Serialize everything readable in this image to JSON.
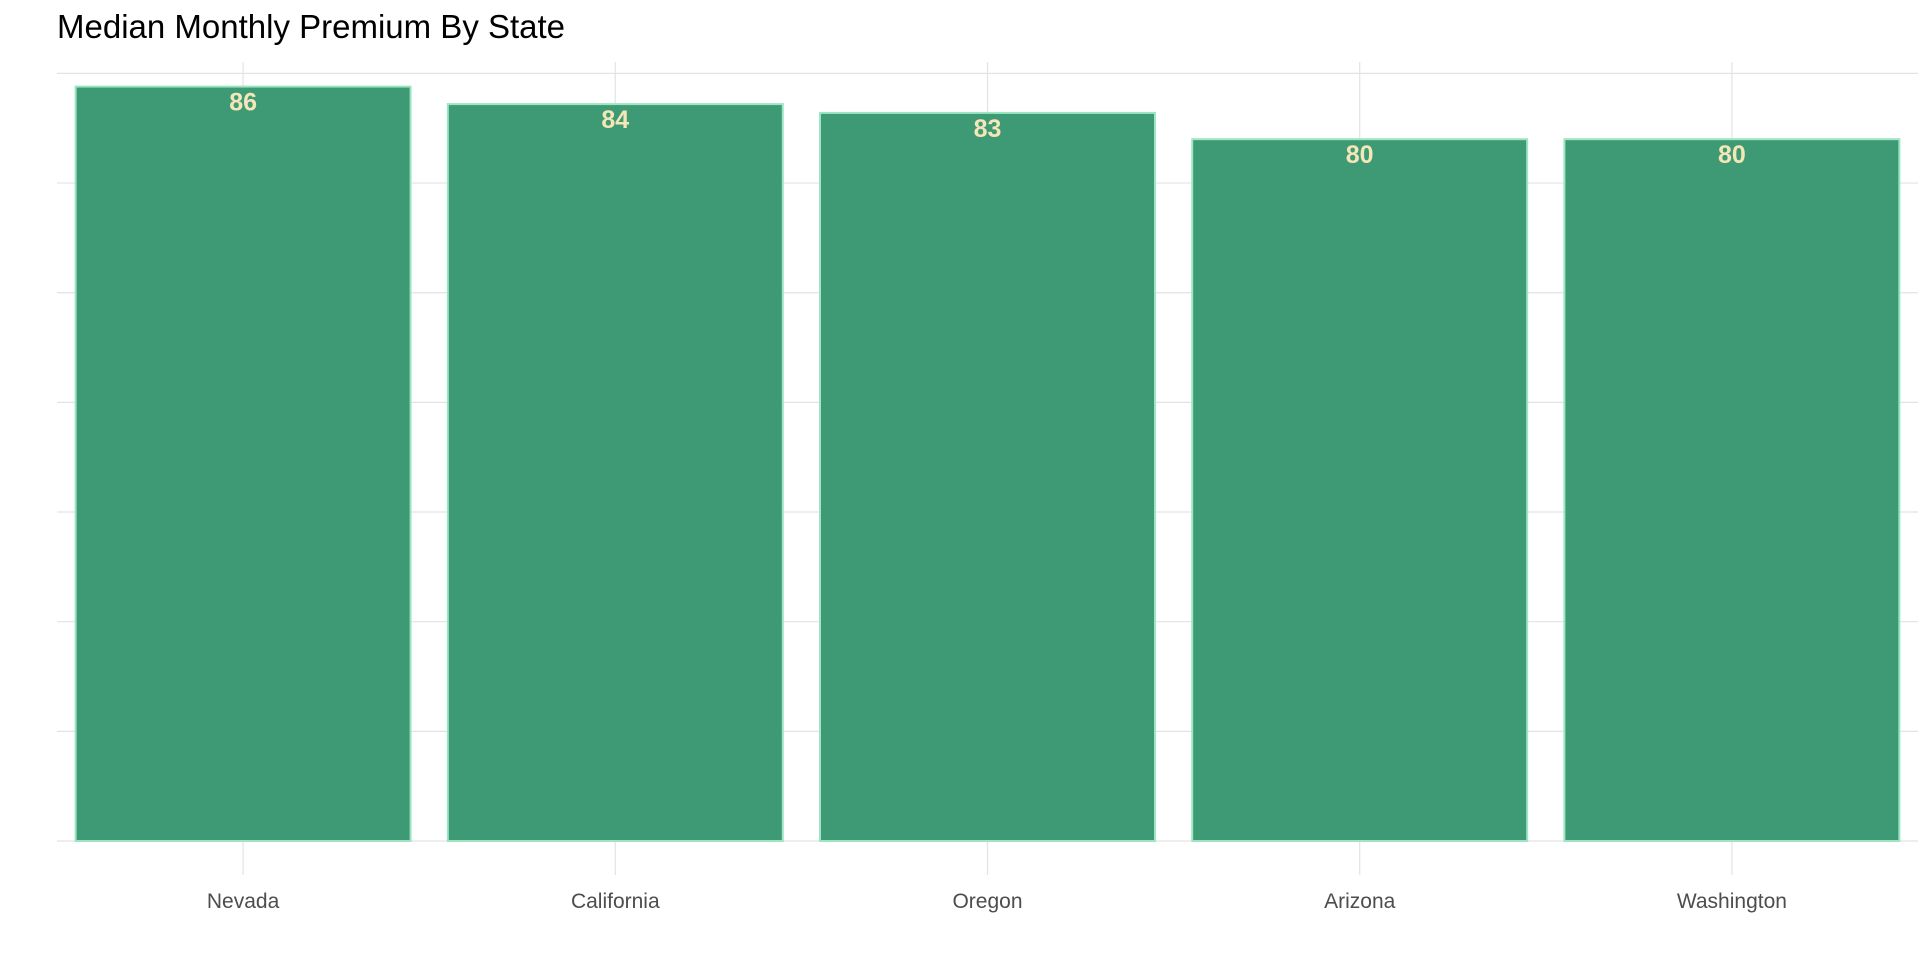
{
  "chart_data": {
    "type": "bar",
    "title": "Median Monthly Premium By State",
    "categories": [
      "Nevada",
      "California",
      "Oregon",
      "Arizona",
      "Washington"
    ],
    "values": [
      86,
      84,
      83,
      80,
      80
    ],
    "data_labels": [
      "86",
      "84",
      "83",
      "80",
      "80"
    ],
    "xlabel": "",
    "ylabel": "",
    "ylim": [
      0,
      88.8
    ],
    "y_gridline_values": [
      0,
      12.5,
      25,
      37.5,
      50,
      62.5,
      75,
      87.5
    ],
    "y_tick_labels_shown": false,
    "grid": true,
    "legend": "none",
    "colors": {
      "bar_fill": "#3D9A74",
      "bar_outline": "#9EE6C3",
      "data_label": "#F5E6B8",
      "grid": "#E3E3E3",
      "axis_text": "#4D4D4D",
      "title": "#000000"
    }
  }
}
